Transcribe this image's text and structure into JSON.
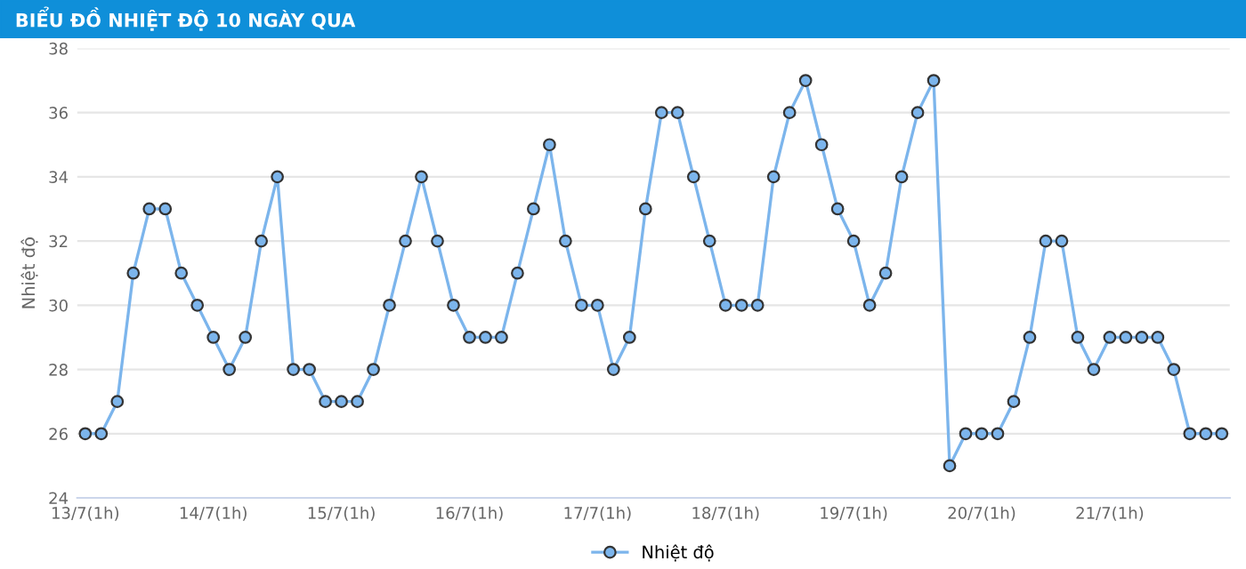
{
  "chart_data": {
    "type": "line",
    "title": "BIỂU ĐỒ NHIỆT ĐỘ 10 NGÀY QUA",
    "ylabel": "Nhiệt độ",
    "categories": [
      "13/7(1h)",
      null,
      null,
      null,
      null,
      null,
      null,
      null,
      "14/7(1h)",
      null,
      null,
      null,
      null,
      null,
      null,
      null,
      "15/7(1h)",
      null,
      null,
      null,
      null,
      null,
      null,
      null,
      "16/7(1h)",
      null,
      null,
      null,
      null,
      null,
      null,
      null,
      "17/7(1h)",
      null,
      null,
      null,
      null,
      null,
      null,
      null,
      "18/7(1h)",
      null,
      null,
      null,
      null,
      null,
      null,
      null,
      "19/7(1h)",
      null,
      null,
      null,
      null,
      null,
      null,
      null,
      "20/7(1h)",
      null,
      null,
      null,
      null,
      null,
      null,
      null,
      "21/7(1h)",
      null,
      null,
      null,
      null,
      null,
      null,
      null
    ],
    "series": [
      {
        "name": "Nhiệt độ",
        "color": "#7cb5ec",
        "values": [
          26,
          26,
          27,
          31,
          33,
          33,
          31,
          30,
          29,
          28,
          29,
          32,
          34,
          28,
          28,
          27,
          27,
          27,
          28,
          30,
          32,
          34,
          32,
          30,
          29,
          29,
          29,
          31,
          33,
          35,
          32,
          30,
          30,
          28,
          29,
          33,
          36,
          36,
          34,
          32,
          30,
          30,
          30,
          34,
          36,
          37,
          35,
          33,
          32,
          30,
          31,
          34,
          36,
          37,
          25,
          26,
          26,
          26,
          27,
          29,
          32,
          32,
          29,
          28,
          29,
          29,
          29,
          29,
          28,
          26,
          26,
          26
        ]
      }
    ],
    "ylim": [
      24,
      38
    ],
    "yticks": [
      24,
      26,
      28,
      30,
      32,
      34,
      36,
      38
    ],
    "grid": "y",
    "legend": "bottom",
    "marker": "circle",
    "line_style": "solid"
  }
}
